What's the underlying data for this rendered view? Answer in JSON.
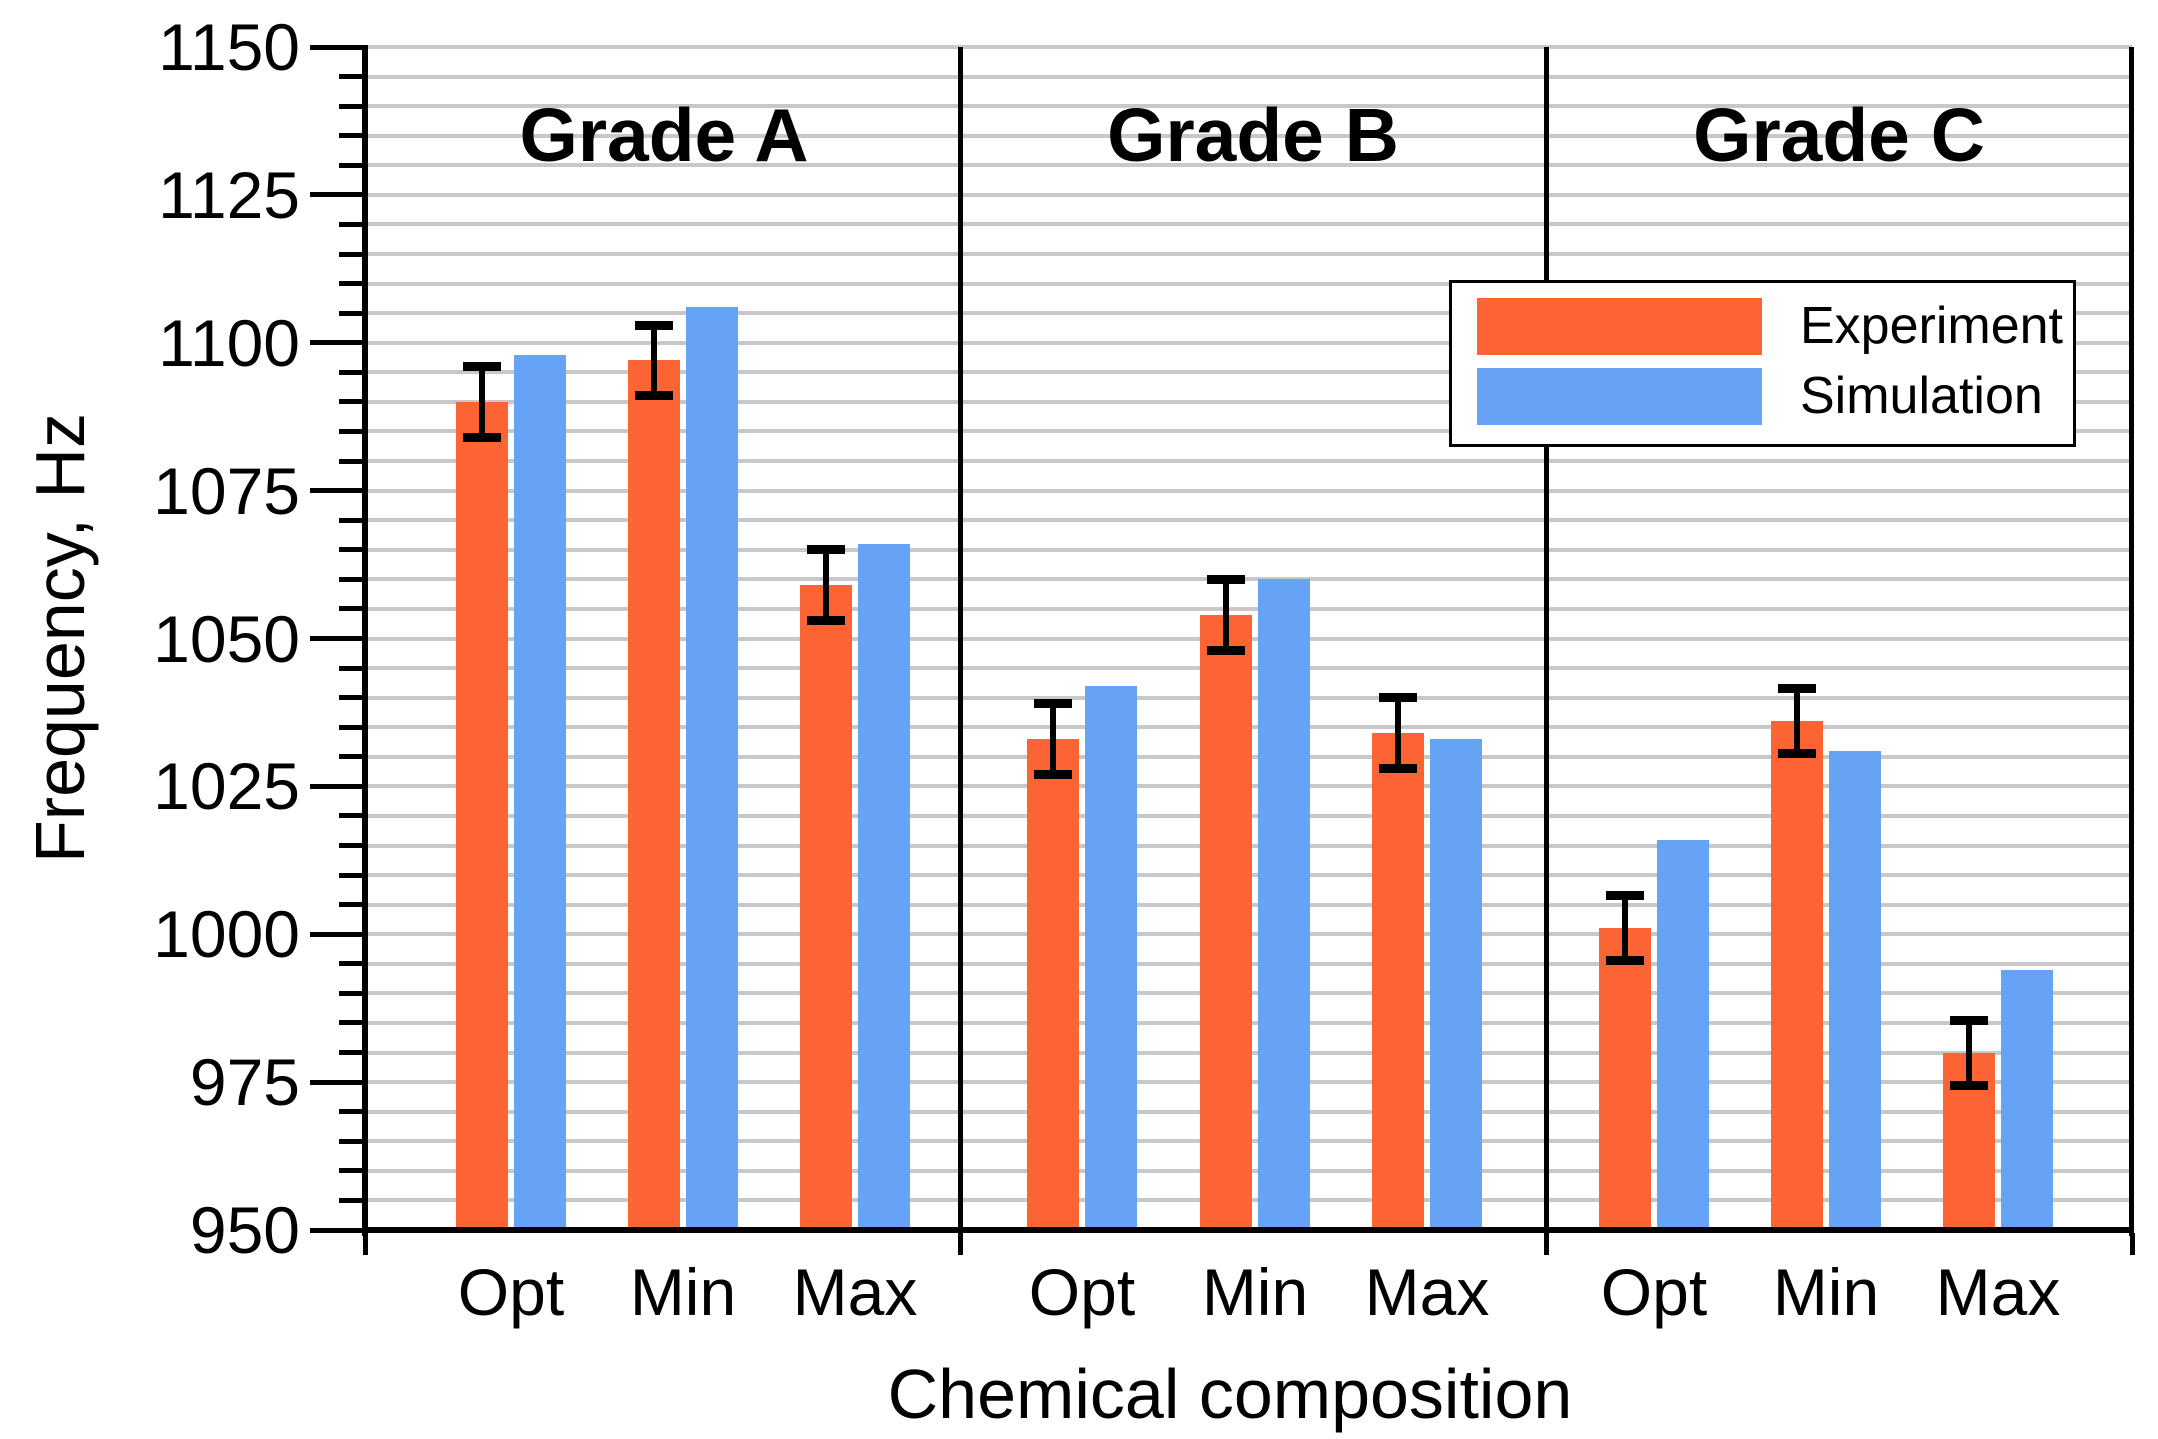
{
  "chart_data": {
    "type": "bar",
    "title": "",
    "xlabel": "Chemical composition",
    "ylabel": "Frequency, Hz",
    "ylim": [
      950,
      1150
    ],
    "ytick_major_step": 25,
    "ytick_minor_step": 5,
    "y_tick_labels": [
      "950",
      "975",
      "1000",
      "1025",
      "1050",
      "1075",
      "1100",
      "1125",
      "1150"
    ],
    "grid": "horizontal gridlines every 5 Hz, light gray, on",
    "legend_position": "upper right inside plot area",
    "categories": [
      "Opt",
      "Min",
      "Max"
    ],
    "series_names": [
      "Experiment",
      "Simulation"
    ],
    "sections": [
      {
        "label": "Grade A",
        "groups": [
          {
            "category": "Opt",
            "experiment": 1090,
            "experiment_err": 6,
            "simulation": 1098
          },
          {
            "category": "Min",
            "experiment": 1097,
            "experiment_err": 6,
            "simulation": 1106
          },
          {
            "category": "Max",
            "experiment": 1059,
            "experiment_err": 6,
            "simulation": 1066
          }
        ]
      },
      {
        "label": "Grade B",
        "groups": [
          {
            "category": "Opt",
            "experiment": 1033,
            "experiment_err": 6,
            "simulation": 1042
          },
          {
            "category": "Min",
            "experiment": 1054,
            "experiment_err": 6,
            "simulation": 1060
          },
          {
            "category": "Max",
            "experiment": 1034,
            "experiment_err": 6,
            "simulation": 1033
          }
        ]
      },
      {
        "label": "Grade C",
        "groups": [
          {
            "category": "Opt",
            "experiment": 1001,
            "experiment_err": 5.5,
            "simulation": 1016
          },
          {
            "category": "Min",
            "experiment": 1036,
            "experiment_err": 5.5,
            "simulation": 1031
          },
          {
            "category": "Max",
            "experiment": 980,
            "experiment_err": 5.5,
            "simulation": 994
          }
        ]
      }
    ],
    "colors": {
      "experiment": "#FC6433",
      "simulation": "#66A3F4",
      "grid": "#C8C8C8",
      "axis": "#000000",
      "background": "#FFFFFF"
    },
    "error_bars": "experiment series only, symmetric caps"
  },
  "legend": {
    "items": [
      {
        "label": "Experiment"
      },
      {
        "label": "Simulation"
      }
    ]
  }
}
